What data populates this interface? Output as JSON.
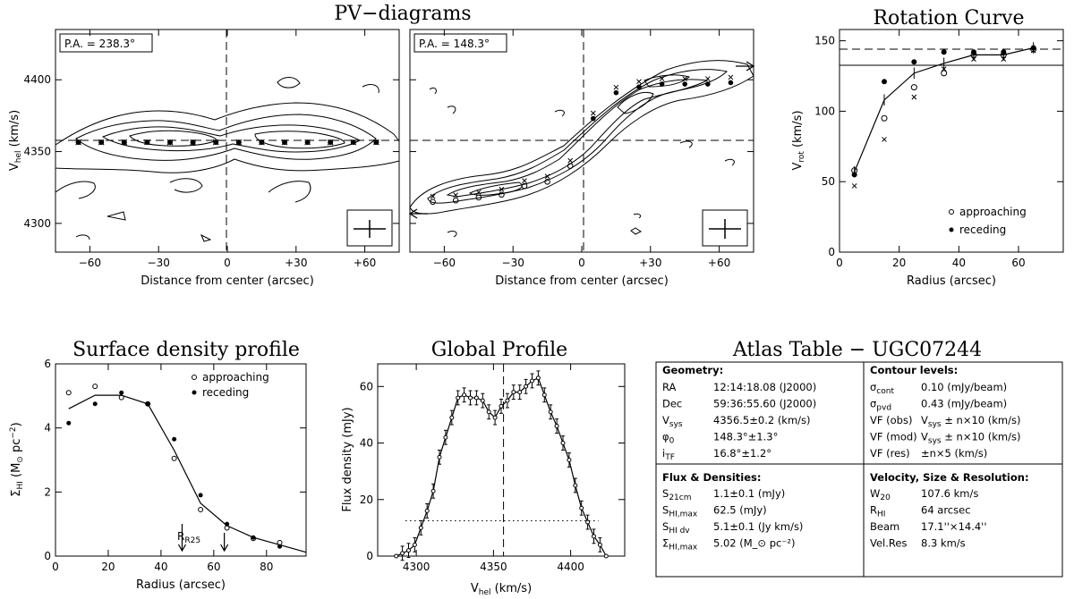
{
  "headings": {
    "pv": "PV−diagrams",
    "rc": "Rotation Curve",
    "sd": "Surface density profile",
    "gp": "Global Profile",
    "atlas": "Atlas Table − UGC07244"
  },
  "pv_panels": [
    {
      "pa_label": "P.A. = 238.3°"
    },
    {
      "pa_label": "P.A. = 148.3°"
    }
  ],
  "pv_axes": {
    "xlabel": "Distance from center (arcsec)",
    "ylabel": "V_hel (km/s)",
    "xticks": [
      "−60",
      "−30",
      "0",
      "+30",
      "+60"
    ],
    "yticks": [
      "4300",
      "4350",
      "4400"
    ]
  },
  "chart_data": [
    {
      "type": "scatter",
      "panel": "pv_left",
      "xlabel": "Distance from center (arcsec)",
      "ylabel": "V_hel (km/s)",
      "xlim": [
        -75,
        75
      ],
      "ylim": [
        4280,
        4435
      ],
      "x": [
        -65,
        -55,
        -45,
        -35,
        -25,
        -15,
        -5,
        5,
        15,
        25,
        35,
        45,
        55,
        65
      ],
      "y": [
        4356.5,
        4356.5,
        4356.5,
        4356.5,
        4356.5,
        4356.5,
        4356.5,
        4356.5,
        4356.5,
        4356.5,
        4356.5,
        4356.5,
        4356.5,
        4356.5
      ]
    },
    {
      "type": "scatter",
      "panel": "pv_right",
      "xlabel": "Distance from center (arcsec)",
      "ylabel": "V_hel (km/s)",
      "xlim": [
        -75,
        75
      ],
      "ylim": [
        4280,
        4435
      ],
      "series": [
        {
          "name": "approaching",
          "x": [
            -65,
            -55,
            -45,
            -35,
            -25,
            -15,
            -5
          ],
          "y": [
            4315,
            4316,
            4318,
            4320,
            4326,
            4329,
            4340
          ]
        },
        {
          "name": "receding",
          "x": [
            5,
            15,
            25,
            35,
            45,
            55,
            65
          ],
          "y": [
            4373,
            4391,
            4395,
            4397,
            4397,
            4397,
            4398
          ]
        }
      ]
    },
    {
      "type": "line",
      "panel": "rotation_curve",
      "title": "Rotation Curve",
      "xlabel": "Radius (arcsec)",
      "ylabel": "V_rot (km/s)",
      "xlim": [
        0,
        75
      ],
      "ylim": [
        0,
        158
      ],
      "xticks": [
        "0",
        "20",
        "40",
        "60"
      ],
      "yticks": [
        "0",
        "50",
        "100",
        "150"
      ],
      "x": [
        5,
        15,
        25,
        35,
        45,
        55,
        65
      ],
      "series": [
        {
          "name": "fit",
          "values": [
            57,
            108,
            127,
            134,
            140,
            140,
            145
          ]
        },
        {
          "name": "approaching",
          "values": [
            58,
            95,
            117,
            127,
            140,
            140,
            144
          ]
        },
        {
          "name": "receding",
          "values": [
            55,
            121,
            135,
            142,
            142,
            142,
            145
          ]
        },
        {
          "name": "model",
          "values": [
            47,
            80,
            110,
            130,
            137,
            137,
            143
          ]
        }
      ],
      "legend": [
        "approaching",
        "receding"
      ]
    },
    {
      "type": "line",
      "panel": "surface_density",
      "title": "Surface density profile",
      "xlabel": "Radius (arcsec)",
      "ylabel": "Σ_HI (M_⊙ pc⁻²)",
      "xlim": [
        0,
        95
      ],
      "ylim": [
        0,
        6
      ],
      "xticks": [
        "0",
        "20",
        "40",
        "60",
        "80"
      ],
      "yticks": [
        "0",
        "2",
        "4",
        "6"
      ],
      "x": [
        5,
        15,
        25,
        35,
        45,
        55,
        65,
        75,
        85
      ],
      "series": [
        {
          "name": "profile",
          "values": [
            4.6,
            5.02,
            5.02,
            4.75,
            3.3,
            1.65,
            0.95,
            0.58,
            0.35
          ]
        },
        {
          "name": "approaching",
          "values": [
            5.1,
            5.3,
            4.95,
            4.75,
            3.05,
            1.45,
            0.88,
            0.55,
            0.42
          ]
        },
        {
          "name": "receding",
          "values": [
            4.15,
            4.75,
            5.1,
            4.75,
            3.65,
            1.9,
            1.0,
            0.58,
            0.3
          ]
        }
      ],
      "legend": [
        "approaching",
        "receding"
      ],
      "markers": [
        {
          "label": "R25",
          "x": 48
        },
        {
          "label": "",
          "x": 64
        }
      ]
    },
    {
      "type": "line",
      "panel": "global_profile",
      "title": "Global Profile",
      "xlabel": "V_hel (km/s)",
      "ylabel": "Flux density (mJy)",
      "xlim": [
        4275,
        4435
      ],
      "ylim": [
        0,
        68
      ],
      "xticks": [
        "4300",
        "4350",
        "4400"
      ],
      "yticks": [
        "0",
        "20",
        "40",
        "60"
      ],
      "x": [
        4287,
        4291,
        4295,
        4299,
        4303,
        4307,
        4311,
        4315,
        4319,
        4323,
        4327,
        4331,
        4335,
        4339,
        4343,
        4347,
        4351,
        4355,
        4359,
        4363,
        4367,
        4371,
        4375,
        4379,
        4383,
        4387,
        4391,
        4395,
        4399,
        4403,
        4407,
        4411,
        4415,
        4419,
        4423
      ],
      "values": [
        0,
        1,
        2,
        4,
        10,
        16,
        23,
        35,
        42,
        49,
        56,
        57,
        56,
        56,
        55,
        51,
        49,
        53,
        55,
        58,
        58,
        60,
        62,
        63,
        57,
        51,
        46,
        40,
        34,
        25,
        17,
        12,
        7,
        4,
        0
      ],
      "vsys": 4356.5,
      "level_20pct": 12.5
    }
  ],
  "atlas_table": {
    "geometry": {
      "heading": "Geometry:",
      "rows": [
        {
          "label": "RA",
          "value": "12:14:18.08 (J2000)"
        },
        {
          "label": "Dec",
          "value": "59:36:55.60 (J2000)"
        },
        {
          "label": "V_sys",
          "value": "4356.5±0.2 (km/s)"
        },
        {
          "label": "φ_0",
          "value": "148.3°±1.3°"
        },
        {
          "label": "i_TF",
          "value": "16.8°±1.2°"
        }
      ]
    },
    "contours": {
      "heading": "Contour levels:",
      "rows": [
        {
          "label": "σ_cont",
          "value": "0.10 (mJy/beam)"
        },
        {
          "label": "σ_pvd",
          "value": "0.43 (mJy/beam)"
        },
        {
          "label": "VF (obs)",
          "value": "V_sys ± n×10 (km/s)"
        },
        {
          "label": "VF (mod)",
          "value": "V_sys ± n×10 (km/s)"
        },
        {
          "label": "VF (res)",
          "value": "±n×5 (km/s)"
        }
      ]
    },
    "flux": {
      "heading": "Flux & Densities:",
      "rows": [
        {
          "label": "S_21cm",
          "value": "1.1±0.1 (mJy)"
        },
        {
          "label": "S_HI,max",
          "value": "62.5 (mJy)"
        },
        {
          "label": "S_HI dv",
          "value": "5.1±0.1 (Jy km/s)"
        },
        {
          "label": "Σ_HI,max",
          "value": "5.02 (M_⊙ pc⁻²)"
        }
      ]
    },
    "velocity": {
      "heading": "Velocity, Size & Resolution:",
      "rows": [
        {
          "label": "W_20",
          "value": "107.6 km/s"
        },
        {
          "label": "R_HI",
          "value": "64 arcsec"
        },
        {
          "label": "Beam",
          "value": "17.1''×14.4''"
        },
        {
          "label": "Vel.Res",
          "value": "8.3 km/s"
        }
      ]
    }
  }
}
